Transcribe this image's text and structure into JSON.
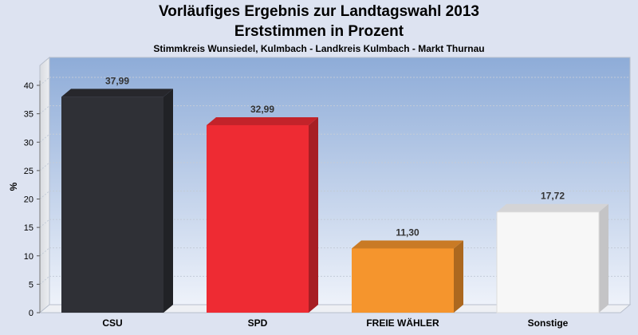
{
  "chart_data": {
    "type": "bar",
    "title": "Vorläufiges Ergebnis zur Landtagswahl 2013",
    "title_line2": "Erststimmen in Prozent",
    "subtitle": "Stimmkreis Wunsiedel, Kulmbach - Landkreis Kulmbach - Markt Thurnau",
    "categories": [
      "CSU",
      "SPD",
      "FREIE WÄHLER",
      "Sonstige"
    ],
    "values": [
      37.99,
      32.99,
      11.3,
      17.72
    ],
    "value_labels": [
      "37,99",
      "32,99",
      "11,30",
      "17,72"
    ],
    "colors": [
      "#2f3036",
      "#ee2b33",
      "#f5952d",
      "#f7f7f7"
    ],
    "xlabel": "",
    "ylabel": "%",
    "ylim": [
      0,
      40
    ],
    "yticks": [
      0,
      5,
      10,
      15,
      20,
      25,
      30,
      35,
      40
    ],
    "grid": true,
    "legend": "none"
  }
}
